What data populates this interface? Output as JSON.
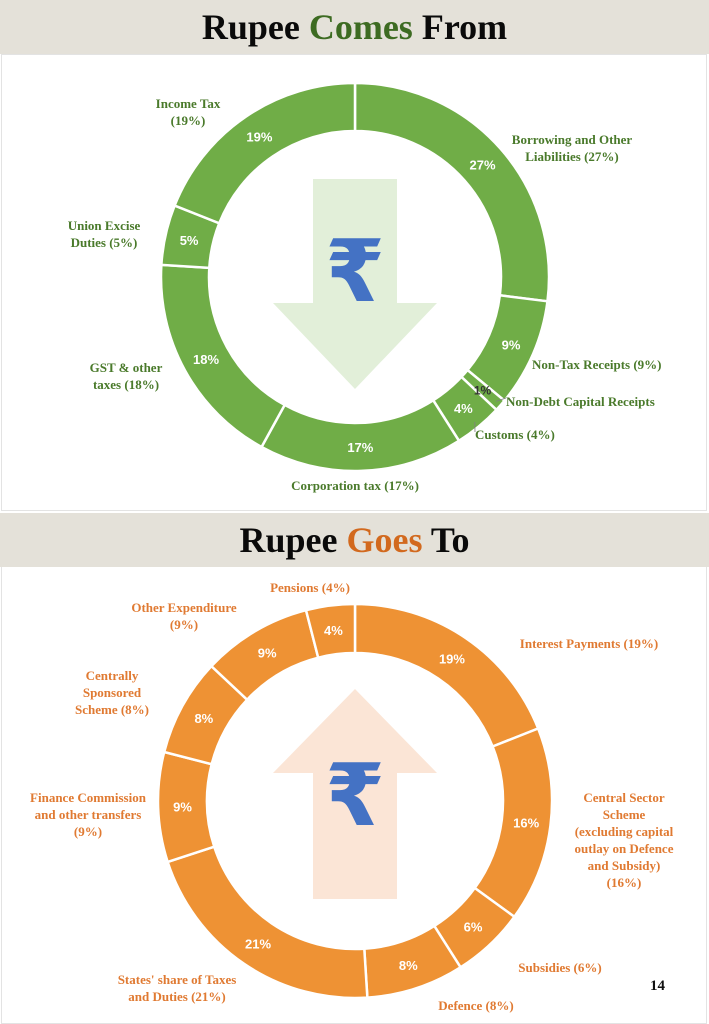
{
  "page_number": "14",
  "colors": {
    "income_ring": "#70ad47",
    "income_label": "#4a7a2b",
    "expense_ring": "#ee9234",
    "expense_label": "#e07a32",
    "income_arrow": "#e2efd9",
    "expense_arrow": "#fbe5d6",
    "rupee_symbol": "#4472c4",
    "banner_bg": "#e4e1d9"
  },
  "rupee_symbol": "₹",
  "chart_data": [
    {
      "type": "pie",
      "variant": "donut",
      "title_parts": [
        "Rupee ",
        "Comes",
        " From"
      ],
      "arrow_direction": "down",
      "categories": [
        "Borrowing and Other Liabilities (27%)",
        "Non-Tax Receipts (9%)",
        "Non-Debt Capital Receipts",
        "Customs (4%)",
        "Corporation tax (17%)",
        "GST & other taxes (18%)",
        "Union Excise Duties (5%)",
        "Income Tax (19%)"
      ],
      "values": [
        27,
        9,
        1,
        4,
        17,
        18,
        5,
        19
      ],
      "data_labels": [
        "27%",
        "9%",
        "1%",
        "4%",
        "17%",
        "18%",
        "5%",
        "19%"
      ]
    },
    {
      "type": "pie",
      "variant": "donut",
      "title_parts": [
        "Rupee ",
        "Goes",
        " To"
      ],
      "arrow_direction": "up",
      "categories": [
        "Interest Payments (19%)",
        "Central Sector Scheme (excluding capital outlay on Defence and Subsidy) (16%)",
        "Subsidies (6%)",
        "Defence (8%)",
        "States' share of Taxes and Duties (21%)",
        "Finance Commission and other transfers (9%)",
        "Centrally Sponsored Scheme (8%)",
        "Other Expenditure (9%)",
        "Pensions (4%)"
      ],
      "values": [
        19,
        16,
        6,
        8,
        21,
        9,
        8,
        9,
        4
      ],
      "data_labels": [
        "19%",
        "16%",
        "6%",
        "8%",
        "21%",
        "9%",
        "8%",
        "9%",
        "4%"
      ]
    }
  ]
}
